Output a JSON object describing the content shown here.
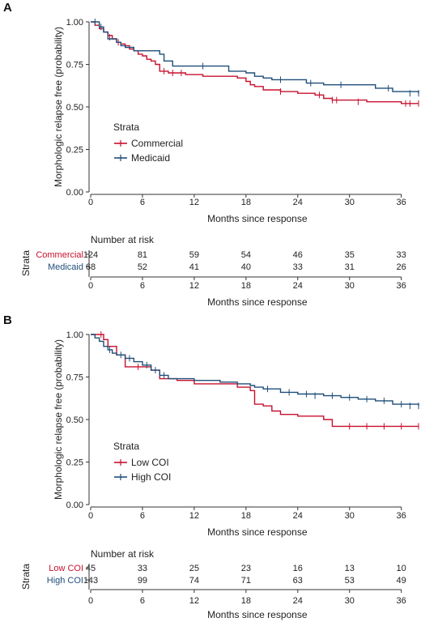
{
  "chart_data": [
    {
      "type": "line",
      "panel_label": "A",
      "xlabel": "Months since response",
      "ylabel": "Morphologic relapse free (probability)",
      "xlim": [
        0,
        38
      ],
      "ylim": [
        0,
        1
      ],
      "xticks": [
        0,
        6,
        12,
        18,
        24,
        30,
        36
      ],
      "yticks": [
        "0.00",
        "0.25",
        "0.50",
        "0.75",
        "1.00"
      ],
      "grid": false,
      "legend": {
        "title": "Strata",
        "placement": "center-left",
        "entries": [
          "Commercial",
          "Medicaid"
        ]
      },
      "series": [
        {
          "name": "Commercial",
          "color": "#c8102e",
          "x": [
            0,
            0.5,
            1.0,
            1.5,
            2.0,
            2.5,
            3.0,
            3.5,
            4.0,
            4.5,
            5.0,
            5.5,
            6.0,
            6.5,
            7.0,
            7.5,
            8.0,
            9.0,
            10.0,
            11.0,
            12.0,
            13.0,
            15.0,
            17.0,
            18.0,
            18.5,
            19.0,
            20.0,
            21.0,
            22.0,
            24.0,
            26.0,
            27.0,
            28.0,
            30.0,
            32.0,
            34.0,
            36.0,
            38.0
          ],
          "y": [
            1.0,
            0.98,
            0.96,
            0.94,
            0.92,
            0.9,
            0.88,
            0.87,
            0.86,
            0.84,
            0.83,
            0.81,
            0.8,
            0.78,
            0.77,
            0.75,
            0.71,
            0.7,
            0.7,
            0.69,
            0.69,
            0.68,
            0.68,
            0.67,
            0.65,
            0.63,
            0.62,
            0.6,
            0.6,
            0.59,
            0.58,
            0.57,
            0.55,
            0.54,
            0.54,
            0.53,
            0.53,
            0.52,
            0.52
          ],
          "censored": [
            [
              2.2,
              0.91
            ],
            [
              3.2,
              0.88
            ],
            [
              8.5,
              0.71
            ],
            [
              9.5,
              0.7
            ],
            [
              10.5,
              0.7
            ],
            [
              22.0,
              0.59
            ],
            [
              26.5,
              0.57
            ],
            [
              28.0,
              0.54
            ],
            [
              28.5,
              0.54
            ],
            [
              31.0,
              0.53
            ],
            [
              36.5,
              0.52
            ],
            [
              37.0,
              0.52
            ],
            [
              38.0,
              0.52
            ]
          ]
        },
        {
          "name": "Medicaid",
          "color": "#1f4e79",
          "x": [
            0,
            1.0,
            1.5,
            2.0,
            3.0,
            3.5,
            4.0,
            5.0,
            6.0,
            8.0,
            8.5,
            9.5,
            11.0,
            13.0,
            16.0,
            18.0,
            19.0,
            20.0,
            21.0,
            23.0,
            25.0,
            27.0,
            33.0,
            35.0,
            38.0
          ],
          "y": [
            1.0,
            0.97,
            0.94,
            0.9,
            0.88,
            0.86,
            0.85,
            0.83,
            0.83,
            0.81,
            0.77,
            0.74,
            0.74,
            0.74,
            0.71,
            0.7,
            0.68,
            0.67,
            0.66,
            0.66,
            0.64,
            0.63,
            0.61,
            0.59,
            0.58
          ],
          "censored": [
            [
              0.5,
              1.0
            ],
            [
              1.2,
              0.97
            ],
            [
              13.0,
              0.74
            ],
            [
              22.0,
              0.66
            ],
            [
              25.5,
              0.64
            ],
            [
              29.0,
              0.63
            ],
            [
              34.5,
              0.61
            ],
            [
              37.0,
              0.58
            ],
            [
              38.0,
              0.58
            ]
          ]
        }
      ],
      "risk_table": {
        "title": "Number at risk",
        "strata_label": "Strata",
        "xlabel": "Months since response",
        "rows": [
          {
            "name": "Commercial",
            "color": "#c8102e",
            "values": [
              "124",
              "81",
              "59",
              "54",
              "46",
              "35",
              "33"
            ]
          },
          {
            "name": "Medicaid",
            "color": "#1f4e79",
            "values": [
              "68",
              "52",
              "41",
              "40",
              "33",
              "31",
              "26"
            ]
          }
        ]
      }
    },
    {
      "type": "line",
      "panel_label": "B",
      "xlabel": "Months since response",
      "ylabel": "Morphologic relapse free (probability)",
      "xlim": [
        0,
        38
      ],
      "ylim": [
        0,
        1
      ],
      "xticks": [
        0,
        6,
        12,
        18,
        24,
        30,
        36
      ],
      "yticks": [
        "0.00",
        "0.25",
        "0.50",
        "0.75",
        "1.00"
      ],
      "grid": false,
      "legend": {
        "title": "Strata",
        "placement": "center-left",
        "entries": [
          "Low COI",
          "High COI"
        ]
      },
      "series": [
        {
          "name": "Low COI",
          "color": "#c8102e",
          "x": [
            0,
            1.5,
            2.0,
            3.0,
            4.0,
            6.0,
            7.0,
            8.0,
            10.0,
            12.0,
            15.0,
            17.0,
            18.5,
            19.0,
            20.0,
            21.0,
            22.0,
            24.0,
            27.0,
            28.0,
            38.0
          ],
          "y": [
            1.0,
            0.97,
            0.93,
            0.88,
            0.81,
            0.81,
            0.79,
            0.74,
            0.73,
            0.71,
            0.71,
            0.69,
            0.67,
            0.59,
            0.58,
            0.55,
            0.53,
            0.52,
            0.5,
            0.46,
            0.46
          ],
          "censored": [
            [
              1.2,
              1.0
            ],
            [
              5.5,
              0.81
            ],
            [
              30.0,
              0.46
            ],
            [
              32.0,
              0.46
            ],
            [
              34.0,
              0.46
            ],
            [
              36.0,
              0.46
            ],
            [
              38.0,
              0.46
            ]
          ]
        },
        {
          "name": "High COI",
          "color": "#1f4e79",
          "x": [
            0,
            0.5,
            1.0,
            1.5,
            2.0,
            2.5,
            3.0,
            4.0,
            5.0,
            6.0,
            7.0,
            8.0,
            9.0,
            12.0,
            15.0,
            17.0,
            18.5,
            19.0,
            20.0,
            22.0,
            24.0,
            27.0,
            29.0,
            31.0,
            33.0,
            35.0,
            38.0
          ],
          "y": [
            1.0,
            0.98,
            0.96,
            0.93,
            0.91,
            0.89,
            0.88,
            0.86,
            0.84,
            0.82,
            0.79,
            0.76,
            0.74,
            0.73,
            0.72,
            0.71,
            0.7,
            0.69,
            0.68,
            0.66,
            0.65,
            0.64,
            0.63,
            0.62,
            0.61,
            0.59,
            0.58
          ],
          "censored": [
            [
              2.2,
              0.91
            ],
            [
              3.5,
              0.88
            ],
            [
              4.5,
              0.86
            ],
            [
              6.5,
              0.82
            ],
            [
              7.5,
              0.79
            ],
            [
              8.5,
              0.76
            ],
            [
              20.5,
              0.68
            ],
            [
              23.0,
              0.66
            ],
            [
              25.0,
              0.65
            ],
            [
              26.0,
              0.64
            ],
            [
              28.0,
              0.64
            ],
            [
              30.0,
              0.63
            ],
            [
              32.0,
              0.62
            ],
            [
              34.0,
              0.61
            ],
            [
              36.0,
              0.59
            ],
            [
              37.0,
              0.58
            ],
            [
              38.0,
              0.58
            ]
          ]
        }
      ],
      "risk_table": {
        "title": "Number at risk",
        "strata_label": "Strata",
        "xlabel": "Months since response",
        "rows": [
          {
            "name": "Low COI",
            "color": "#c8102e",
            "values": [
              "45",
              "33",
              "25",
              "23",
              "16",
              "13",
              "10"
            ]
          },
          {
            "name": "High COI",
            "color": "#1f4e79",
            "values": [
              "143",
              "99",
              "74",
              "71",
              "63",
              "53",
              "49"
            ]
          }
        ]
      }
    }
  ]
}
